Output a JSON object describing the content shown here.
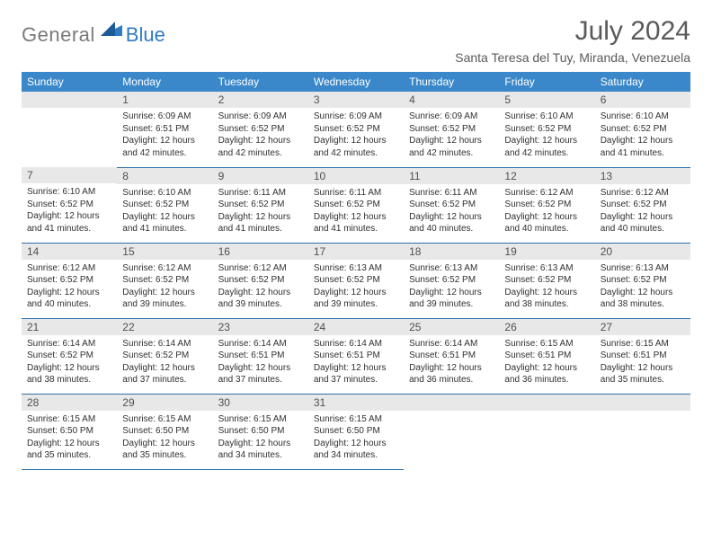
{
  "brand": {
    "text_gray": "General",
    "text_blue": "Blue"
  },
  "header": {
    "month_title": "July 2024",
    "location": "Santa Teresa del Tuy, Miranda, Venezuela"
  },
  "colors": {
    "header_band": "#3a88c9",
    "row_border": "#2d6fa8",
    "daynum_bg": "#e8e8e8",
    "logo_gray": "#7a7a7a",
    "logo_blue": "#2f7bc4"
  },
  "weekdays": [
    "Sunday",
    "Monday",
    "Tuesday",
    "Wednesday",
    "Thursday",
    "Friday",
    "Saturday"
  ],
  "grid": [
    [
      null,
      {
        "n": "1",
        "sr": "6:09 AM",
        "ss": "6:51 PM",
        "dl": "12 hours and 42 minutes."
      },
      {
        "n": "2",
        "sr": "6:09 AM",
        "ss": "6:52 PM",
        "dl": "12 hours and 42 minutes."
      },
      {
        "n": "3",
        "sr": "6:09 AM",
        "ss": "6:52 PM",
        "dl": "12 hours and 42 minutes."
      },
      {
        "n": "4",
        "sr": "6:09 AM",
        "ss": "6:52 PM",
        "dl": "12 hours and 42 minutes."
      },
      {
        "n": "5",
        "sr": "6:10 AM",
        "ss": "6:52 PM",
        "dl": "12 hours and 42 minutes."
      },
      {
        "n": "6",
        "sr": "6:10 AM",
        "ss": "6:52 PM",
        "dl": "12 hours and 41 minutes."
      }
    ],
    [
      {
        "n": "7",
        "sr": "6:10 AM",
        "ss": "6:52 PM",
        "dl": "12 hours and 41 minutes."
      },
      {
        "n": "8",
        "sr": "6:10 AM",
        "ss": "6:52 PM",
        "dl": "12 hours and 41 minutes."
      },
      {
        "n": "9",
        "sr": "6:11 AM",
        "ss": "6:52 PM",
        "dl": "12 hours and 41 minutes."
      },
      {
        "n": "10",
        "sr": "6:11 AM",
        "ss": "6:52 PM",
        "dl": "12 hours and 41 minutes."
      },
      {
        "n": "11",
        "sr": "6:11 AM",
        "ss": "6:52 PM",
        "dl": "12 hours and 40 minutes."
      },
      {
        "n": "12",
        "sr": "6:12 AM",
        "ss": "6:52 PM",
        "dl": "12 hours and 40 minutes."
      },
      {
        "n": "13",
        "sr": "6:12 AM",
        "ss": "6:52 PM",
        "dl": "12 hours and 40 minutes."
      }
    ],
    [
      {
        "n": "14",
        "sr": "6:12 AM",
        "ss": "6:52 PM",
        "dl": "12 hours and 40 minutes."
      },
      {
        "n": "15",
        "sr": "6:12 AM",
        "ss": "6:52 PM",
        "dl": "12 hours and 39 minutes."
      },
      {
        "n": "16",
        "sr": "6:12 AM",
        "ss": "6:52 PM",
        "dl": "12 hours and 39 minutes."
      },
      {
        "n": "17",
        "sr": "6:13 AM",
        "ss": "6:52 PM",
        "dl": "12 hours and 39 minutes."
      },
      {
        "n": "18",
        "sr": "6:13 AM",
        "ss": "6:52 PM",
        "dl": "12 hours and 39 minutes."
      },
      {
        "n": "19",
        "sr": "6:13 AM",
        "ss": "6:52 PM",
        "dl": "12 hours and 38 minutes."
      },
      {
        "n": "20",
        "sr": "6:13 AM",
        "ss": "6:52 PM",
        "dl": "12 hours and 38 minutes."
      }
    ],
    [
      {
        "n": "21",
        "sr": "6:14 AM",
        "ss": "6:52 PM",
        "dl": "12 hours and 38 minutes."
      },
      {
        "n": "22",
        "sr": "6:14 AM",
        "ss": "6:52 PM",
        "dl": "12 hours and 37 minutes."
      },
      {
        "n": "23",
        "sr": "6:14 AM",
        "ss": "6:51 PM",
        "dl": "12 hours and 37 minutes."
      },
      {
        "n": "24",
        "sr": "6:14 AM",
        "ss": "6:51 PM",
        "dl": "12 hours and 37 minutes."
      },
      {
        "n": "25",
        "sr": "6:14 AM",
        "ss": "6:51 PM",
        "dl": "12 hours and 36 minutes."
      },
      {
        "n": "26",
        "sr": "6:15 AM",
        "ss": "6:51 PM",
        "dl": "12 hours and 36 minutes."
      },
      {
        "n": "27",
        "sr": "6:15 AM",
        "ss": "6:51 PM",
        "dl": "12 hours and 35 minutes."
      }
    ],
    [
      {
        "n": "28",
        "sr": "6:15 AM",
        "ss": "6:50 PM",
        "dl": "12 hours and 35 minutes."
      },
      {
        "n": "29",
        "sr": "6:15 AM",
        "ss": "6:50 PM",
        "dl": "12 hours and 35 minutes."
      },
      {
        "n": "30",
        "sr": "6:15 AM",
        "ss": "6:50 PM",
        "dl": "12 hours and 34 minutes."
      },
      {
        "n": "31",
        "sr": "6:15 AM",
        "ss": "6:50 PM",
        "dl": "12 hours and 34 minutes."
      },
      null,
      null,
      null
    ]
  ],
  "labels": {
    "sunrise": "Sunrise:",
    "sunset": "Sunset:",
    "daylight": "Daylight:"
  }
}
